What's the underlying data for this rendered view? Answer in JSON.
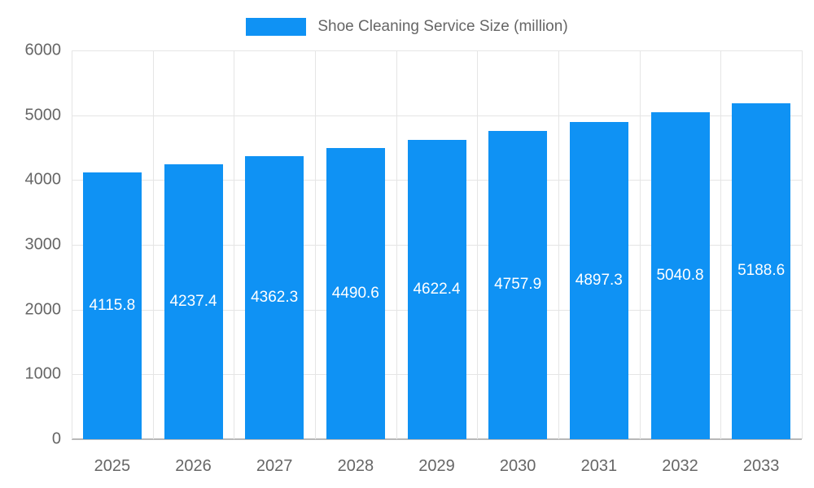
{
  "chart_data": {
    "type": "bar",
    "title": "Shoe Cleaning Service Size (million)",
    "categories": [
      "2025",
      "2026",
      "2027",
      "2028",
      "2029",
      "2030",
      "2031",
      "2032",
      "2033"
    ],
    "values": [
      4115.8,
      4237.4,
      4362.3,
      4490.6,
      4622.4,
      4757.9,
      4897.3,
      5040.8,
      5188.6
    ],
    "value_labels": [
      "4115.8",
      "4237.4",
      "4362.3",
      "4490.6",
      "4622.4",
      "4757.9",
      "4897.3",
      "5040.8",
      "5188.6"
    ],
    "xlabel": "",
    "ylabel": "",
    "ylim": [
      0,
      6000
    ],
    "y_ticks": [
      "0",
      "1000",
      "2000",
      "3000",
      "4000",
      "5000",
      "6000"
    ],
    "grid": true,
    "legend_position": "top",
    "colors": {
      "bar": "#0f92f4",
      "value_label": "#ffffff",
      "axis_text": "#666666",
      "gridline": "#e5e5e5",
      "baseline": "#b8b8b8"
    }
  }
}
